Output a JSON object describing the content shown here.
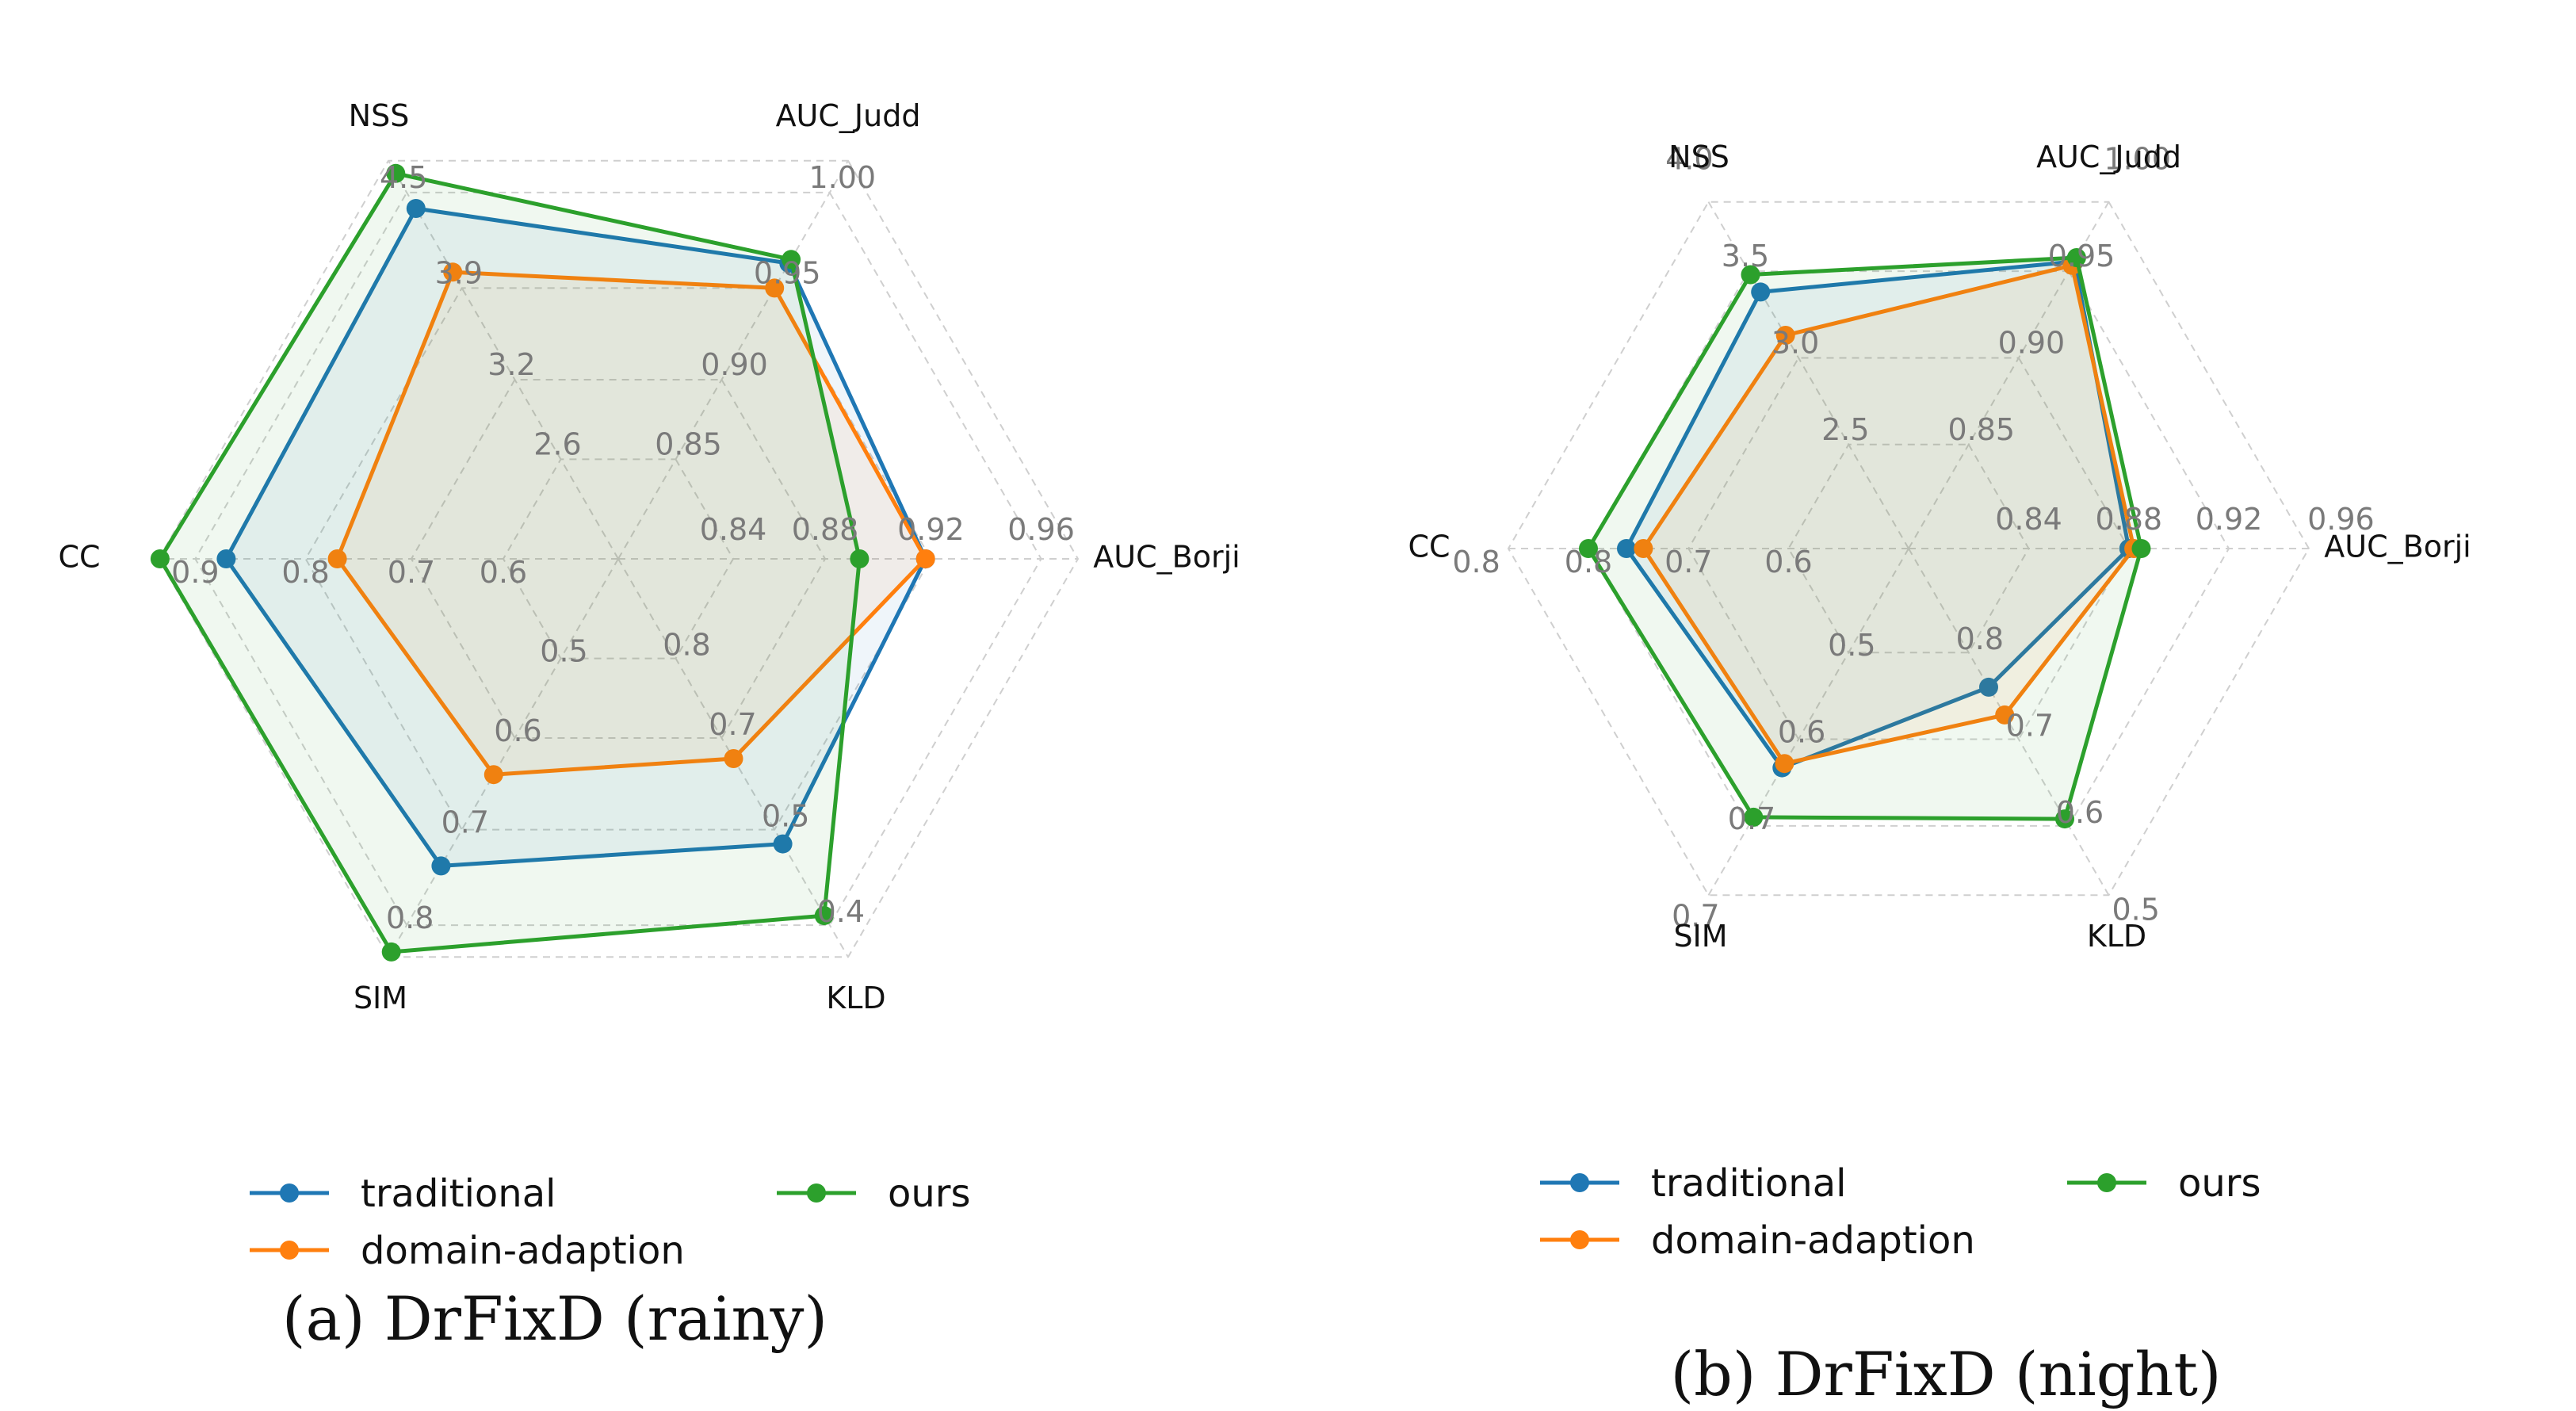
{
  "chart_data": [
    {
      "type": "radar",
      "title": "(a) DrFixD (rainy)",
      "axes": [
        "AUC_Judd",
        "AUC_Borji",
        "KLD",
        "SIM",
        "CC",
        "NSS"
      ],
      "ticks": [
        [
          "0.85",
          "0.90",
          "0.95",
          "1.00"
        ],
        [
          "0.84",
          "0.88",
          "0.92",
          "0.96"
        ],
        [
          "0.8",
          "0.7",
          "0.5",
          "0.4"
        ],
        [
          "0.5",
          "0.6",
          "0.7",
          "0.8"
        ],
        [
          "0.6",
          "0.7",
          "0.8",
          "0.9"
        ],
        [
          "2.6",
          "3.2",
          "3.9",
          "4.5"
        ]
      ],
      "series": [
        {
          "name": "traditional",
          "color": "#1f77b4",
          "values": [
            0.963,
            0.918,
            0.485,
            0.738,
            0.872,
            4.4
          ]
        },
        {
          "name": "domain-adaption",
          "color": "#ff7f0e",
          "values": [
            0.95,
            0.918,
            0.655,
            0.64,
            0.77,
            4.0
          ]
        },
        {
          "name": "ours",
          "color": "#2ca02c",
          "values": [
            0.965,
            0.893,
            0.41,
            0.828,
            0.932,
            4.62
          ]
        }
      ]
    },
    {
      "type": "radar",
      "title": "(b) DrFixD (night)",
      "axes": [
        "AUC_Judd",
        "AUC_Borji",
        "KLD",
        "SIM",
        "CC",
        "NSS"
      ],
      "ticks": [
        [
          "0.85",
          "0.90",
          "0.95",
          "1.00"
        ],
        [
          "0.84",
          "0.88",
          "0.92",
          "0.96"
        ],
        [
          "0.8",
          "0.7",
          "0.6",
          "0.5"
        ],
        [
          "0.5",
          "0.6",
          "0.7",
          "0.7"
        ],
        [
          "0.6",
          "0.7",
          "0.8",
          "0.8"
        ],
        [
          "2.5",
          "3.0",
          "3.5",
          "4.0"
        ]
      ],
      "series": [
        {
          "name": "traditional",
          "color": "#1f77b4",
          "values": [
            0.955,
            0.88,
            0.76,
            0.633,
            0.762,
            3.38
          ]
        },
        {
          "name": "domain-adaption",
          "color": "#ff7f0e",
          "values": [
            0.953,
            0.882,
            0.728,
            0.628,
            0.745,
            3.13
          ]
        },
        {
          "name": "ours",
          "color": "#2ca02c",
          "values": [
            0.957,
            0.885,
            0.608,
            0.69,
            0.818,
            3.48
          ]
        }
      ]
    }
  ]
}
